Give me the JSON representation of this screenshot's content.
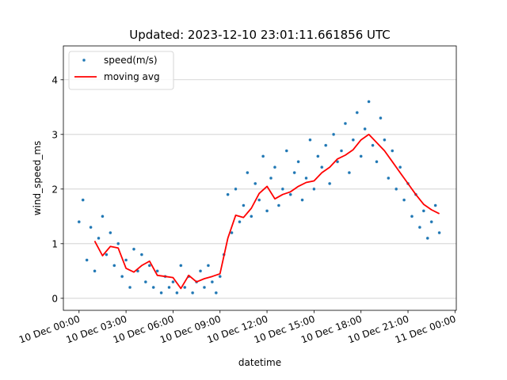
{
  "chart_data": {
    "type": "scatter",
    "title": "Updated: 2023-12-10 23:01:11.661856 UTC",
    "xlabel": "datetime",
    "ylabel": "wind_speed_ms",
    "xlim": [
      "2023-12-09T23:00",
      "2023-12-11T00:05"
    ],
    "ylim": [
      -0.22,
      4.62
    ],
    "grid": {
      "y": true,
      "x": false
    },
    "legend": "top-left",
    "x_ticks": [
      {
        "value": "2023-12-10T00:00",
        "label": "10 Dec 00:00"
      },
      {
        "value": "2023-12-10T03:00",
        "label": "10 Dec 03:00"
      },
      {
        "value": "2023-12-10T06:00",
        "label": "10 Dec 06:00"
      },
      {
        "value": "2023-12-10T09:00",
        "label": "10 Dec 09:00"
      },
      {
        "value": "2023-12-10T12:00",
        "label": "10 Dec 12:00"
      },
      {
        "value": "2023-12-10T15:00",
        "label": "10 Dec 15:00"
      },
      {
        "value": "2023-12-10T18:00",
        "label": "10 Dec 18:00"
      },
      {
        "value": "2023-12-10T21:00",
        "label": "10 Dec 21:00"
      },
      {
        "value": "2023-12-11T00:00",
        "label": "11 Dec 00:00"
      }
    ],
    "y_ticks": [
      0,
      1,
      2,
      3,
      4
    ],
    "series": [
      {
        "name": "speed(m/s)",
        "kind": "scatter",
        "color": "#1f77b4",
        "x": [
          "2023-12-10T00:00",
          "2023-12-10T00:15",
          "2023-12-10T00:30",
          "2023-12-10T00:45",
          "2023-12-10T01:00",
          "2023-12-10T01:15",
          "2023-12-10T01:30",
          "2023-12-10T01:45",
          "2023-12-10T02:00",
          "2023-12-10T02:15",
          "2023-12-10T02:30",
          "2023-12-10T02:45",
          "2023-12-10T03:00",
          "2023-12-10T03:15",
          "2023-12-10T03:30",
          "2023-12-10T03:45",
          "2023-12-10T04:00",
          "2023-12-10T04:15",
          "2023-12-10T04:30",
          "2023-12-10T04:45",
          "2023-12-10T05:00",
          "2023-12-10T05:15",
          "2023-12-10T05:30",
          "2023-12-10T05:45",
          "2023-12-10T06:00",
          "2023-12-10T06:15",
          "2023-12-10T06:30",
          "2023-12-10T06:45",
          "2023-12-10T07:00",
          "2023-12-10T07:15",
          "2023-12-10T07:30",
          "2023-12-10T07:45",
          "2023-12-10T08:00",
          "2023-12-10T08:15",
          "2023-12-10T08:30",
          "2023-12-10T08:45",
          "2023-12-10T09:00",
          "2023-12-10T09:15",
          "2023-12-10T09:30",
          "2023-12-10T09:45",
          "2023-12-10T10:00",
          "2023-12-10T10:15",
          "2023-12-10T10:30",
          "2023-12-10T10:45",
          "2023-12-10T11:00",
          "2023-12-10T11:15",
          "2023-12-10T11:30",
          "2023-12-10T11:45",
          "2023-12-10T12:00",
          "2023-12-10T12:15",
          "2023-12-10T12:30",
          "2023-12-10T12:45",
          "2023-12-10T13:00",
          "2023-12-10T13:15",
          "2023-12-10T13:30",
          "2023-12-10T13:45",
          "2023-12-10T14:00",
          "2023-12-10T14:15",
          "2023-12-10T14:30",
          "2023-12-10T14:45",
          "2023-12-10T15:00",
          "2023-12-10T15:15",
          "2023-12-10T15:30",
          "2023-12-10T15:45",
          "2023-12-10T16:00",
          "2023-12-10T16:15",
          "2023-12-10T16:30",
          "2023-12-10T16:45",
          "2023-12-10T17:00",
          "2023-12-10T17:15",
          "2023-12-10T17:30",
          "2023-12-10T17:45",
          "2023-12-10T18:00",
          "2023-12-10T18:15",
          "2023-12-10T18:30",
          "2023-12-10T18:45",
          "2023-12-10T19:00",
          "2023-12-10T19:15",
          "2023-12-10T19:30",
          "2023-12-10T19:45",
          "2023-12-10T20:00",
          "2023-12-10T20:15",
          "2023-12-10T20:30",
          "2023-12-10T20:45",
          "2023-12-10T21:00",
          "2023-12-10T21:15",
          "2023-12-10T21:30",
          "2023-12-10T21:45",
          "2023-12-10T22:00",
          "2023-12-10T22:15",
          "2023-12-10T22:30",
          "2023-12-10T22:45",
          "2023-12-10T23:00"
        ],
        "y": [
          1.4,
          1.8,
          0.7,
          1.3,
          0.5,
          1.1,
          1.5,
          0.8,
          1.2,
          0.6,
          1.0,
          0.4,
          0.7,
          0.2,
          0.9,
          0.5,
          0.8,
          0.3,
          0.6,
          0.2,
          0.5,
          0.1,
          0.4,
          0.2,
          0.3,
          0.1,
          0.6,
          0.2,
          0.4,
          0.1,
          0.3,
          0.5,
          0.2,
          0.6,
          0.3,
          0.1,
          0.4,
          0.8,
          1.9,
          1.2,
          2.0,
          1.4,
          1.7,
          2.3,
          1.5,
          2.1,
          1.8,
          2.6,
          1.6,
          2.2,
          2.4,
          1.7,
          2.0,
          2.7,
          1.9,
          2.3,
          2.5,
          1.8,
          2.2,
          2.9,
          2.0,
          2.6,
          2.4,
          2.8,
          2.1,
          3.0,
          2.5,
          2.7,
          3.2,
          2.3,
          2.9,
          3.4,
          2.6,
          3.1,
          3.6,
          2.8,
          2.5,
          3.3,
          2.9,
          2.2,
          2.7,
          2.0,
          2.4,
          1.8,
          2.1,
          1.5,
          1.9,
          1.3,
          1.6,
          1.1,
          1.4,
          1.7,
          1.2
        ]
      },
      {
        "name": "moving avg",
        "kind": "line",
        "color": "#ff0000",
        "x": [
          "2023-12-10T01:00",
          "2023-12-10T01:30",
          "2023-12-10T02:00",
          "2023-12-10T02:30",
          "2023-12-10T03:00",
          "2023-12-10T03:30",
          "2023-12-10T04:00",
          "2023-12-10T04:30",
          "2023-12-10T05:00",
          "2023-12-10T05:30",
          "2023-12-10T06:00",
          "2023-12-10T06:30",
          "2023-12-10T07:00",
          "2023-12-10T07:30",
          "2023-12-10T08:00",
          "2023-12-10T08:30",
          "2023-12-10T09:00",
          "2023-12-10T09:30",
          "2023-12-10T10:00",
          "2023-12-10T10:30",
          "2023-12-10T11:00",
          "2023-12-10T11:30",
          "2023-12-10T12:00",
          "2023-12-10T12:30",
          "2023-12-10T13:00",
          "2023-12-10T13:30",
          "2023-12-10T14:00",
          "2023-12-10T14:30",
          "2023-12-10T15:00",
          "2023-12-10T15:30",
          "2023-12-10T16:00",
          "2023-12-10T16:30",
          "2023-12-10T17:00",
          "2023-12-10T17:30",
          "2023-12-10T18:00",
          "2023-12-10T18:30",
          "2023-12-10T19:00",
          "2023-12-10T19:30",
          "2023-12-10T20:00",
          "2023-12-10T20:30",
          "2023-12-10T21:00",
          "2023-12-10T21:30",
          "2023-12-10T22:00",
          "2023-12-10T22:30",
          "2023-12-10T23:00"
        ],
        "y": [
          1.05,
          0.78,
          0.95,
          0.92,
          0.55,
          0.48,
          0.6,
          0.68,
          0.42,
          0.4,
          0.38,
          0.18,
          0.42,
          0.3,
          0.36,
          0.4,
          0.45,
          1.1,
          1.52,
          1.48,
          1.65,
          1.92,
          2.05,
          1.82,
          1.9,
          1.95,
          2.05,
          2.12,
          2.15,
          2.3,
          2.4,
          2.55,
          2.62,
          2.72,
          2.9,
          3.0,
          2.85,
          2.7,
          2.5,
          2.3,
          2.1,
          1.9,
          1.72,
          1.62,
          1.55
        ]
      }
    ]
  }
}
